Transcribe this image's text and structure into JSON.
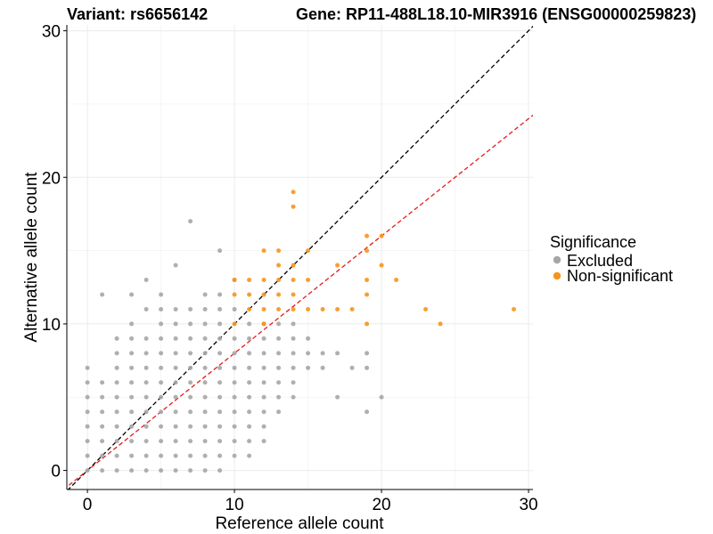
{
  "chart_data": {
    "type": "scatter",
    "title_left": "Variant: rs6656142",
    "title_right": "Gene: RP11-488L18.10-MIR3916 (ENSG00000259823)",
    "xlabel": "Reference allele count",
    "ylabel": "Alternative allele count",
    "xlim": [
      -1.4,
      30.3
    ],
    "ylim": [
      -1.3,
      30.4
    ],
    "xticks": [
      0,
      10,
      20,
      30
    ],
    "yticks": [
      0,
      10,
      20,
      30
    ],
    "grid": true,
    "legend": {
      "title": "Significance",
      "placement": "right",
      "entries": [
        {
          "label": "Excluded",
          "color": "#A6A6A6"
        },
        {
          "label": "Non-significant",
          "color": "#F7931E"
        }
      ]
    },
    "reference_lines": [
      {
        "name": "identity",
        "slope": 1.0,
        "intercept": 0,
        "color": "#000000",
        "style": "dashed"
      },
      {
        "name": "expected-ratio",
        "slope": 0.8,
        "intercept": 0,
        "color": "#E41A1C",
        "style": "dashed"
      }
    ],
    "series": [
      {
        "name": "Excluded",
        "color": "#A6A6A6",
        "points": [
          [
            0,
            0
          ],
          [
            0,
            1
          ],
          [
            0,
            2
          ],
          [
            0,
            3
          ],
          [
            0,
            4
          ],
          [
            0,
            5
          ],
          [
            0,
            6
          ],
          [
            0,
            7
          ],
          [
            1,
            0
          ],
          [
            1,
            1
          ],
          [
            1,
            2
          ],
          [
            1,
            3
          ],
          [
            1,
            4
          ],
          [
            1,
            5
          ],
          [
            1,
            6
          ],
          [
            1,
            12
          ],
          [
            2,
            0
          ],
          [
            2,
            1
          ],
          [
            2,
            2
          ],
          [
            2,
            3
          ],
          [
            2,
            4
          ],
          [
            2,
            5
          ],
          [
            2,
            6
          ],
          [
            2,
            7
          ],
          [
            2,
            8
          ],
          [
            2,
            9
          ],
          [
            3,
            0
          ],
          [
            3,
            1
          ],
          [
            3,
            2
          ],
          [
            3,
            3
          ],
          [
            3,
            4
          ],
          [
            3,
            5
          ],
          [
            3,
            6
          ],
          [
            3,
            7
          ],
          [
            3,
            8
          ],
          [
            3,
            9
          ],
          [
            3,
            10
          ],
          [
            3,
            12
          ],
          [
            4,
            0
          ],
          [
            4,
            1
          ],
          [
            4,
            2
          ],
          [
            4,
            3
          ],
          [
            4,
            4
          ],
          [
            4,
            5
          ],
          [
            4,
            6
          ],
          [
            4,
            7
          ],
          [
            4,
            8
          ],
          [
            4,
            9
          ],
          [
            4,
            11
          ],
          [
            4,
            13
          ],
          [
            5,
            0
          ],
          [
            5,
            1
          ],
          [
            5,
            2
          ],
          [
            5,
            3
          ],
          [
            5,
            4
          ],
          [
            5,
            5
          ],
          [
            5,
            6
          ],
          [
            5,
            7
          ],
          [
            5,
            8
          ],
          [
            5,
            9
          ],
          [
            5,
            10
          ],
          [
            5,
            11
          ],
          [
            5,
            12
          ],
          [
            6,
            0
          ],
          [
            6,
            1
          ],
          [
            6,
            2
          ],
          [
            6,
            3
          ],
          [
            6,
            4
          ],
          [
            6,
            5
          ],
          [
            6,
            6
          ],
          [
            6,
            7
          ],
          [
            6,
            8
          ],
          [
            6,
            9
          ],
          [
            6,
            10
          ],
          [
            6,
            11
          ],
          [
            6,
            14
          ],
          [
            7,
            0
          ],
          [
            7,
            1
          ],
          [
            7,
            2
          ],
          [
            7,
            3
          ],
          [
            7,
            4
          ],
          [
            7,
            5
          ],
          [
            7,
            6
          ],
          [
            7,
            7
          ],
          [
            7,
            8
          ],
          [
            7,
            9
          ],
          [
            7,
            10
          ],
          [
            7,
            11
          ],
          [
            7,
            17
          ],
          [
            8,
            0
          ],
          [
            8,
            1
          ],
          [
            8,
            2
          ],
          [
            8,
            3
          ],
          [
            8,
            4
          ],
          [
            8,
            5
          ],
          [
            8,
            6
          ],
          [
            8,
            7
          ],
          [
            8,
            8
          ],
          [
            8,
            9
          ],
          [
            8,
            10
          ],
          [
            8,
            11
          ],
          [
            8,
            12
          ],
          [
            9,
            0
          ],
          [
            9,
            1
          ],
          [
            9,
            2
          ],
          [
            9,
            3
          ],
          [
            9,
            4
          ],
          [
            9,
            5
          ],
          [
            9,
            6
          ],
          [
            9,
            7
          ],
          [
            9,
            8
          ],
          [
            9,
            9
          ],
          [
            9,
            10
          ],
          [
            9,
            11
          ],
          [
            9,
            12
          ],
          [
            9,
            15
          ],
          [
            10,
            1
          ],
          [
            10,
            2
          ],
          [
            10,
            3
          ],
          [
            10,
            4
          ],
          [
            10,
            5
          ],
          [
            10,
            6
          ],
          [
            10,
            7
          ],
          [
            10,
            8
          ],
          [
            10,
            9
          ],
          [
            10,
            11
          ],
          [
            10,
            13
          ],
          [
            11,
            1
          ],
          [
            11,
            2
          ],
          [
            11,
            3
          ],
          [
            11,
            4
          ],
          [
            11,
            5
          ],
          [
            11,
            6
          ],
          [
            11,
            7
          ],
          [
            11,
            8
          ],
          [
            11,
            9
          ],
          [
            11,
            10
          ],
          [
            12,
            2
          ],
          [
            12,
            3
          ],
          [
            12,
            4
          ],
          [
            12,
            5
          ],
          [
            12,
            6
          ],
          [
            12,
            7
          ],
          [
            12,
            8
          ],
          [
            12,
            9
          ],
          [
            12,
            10
          ],
          [
            13,
            4
          ],
          [
            13,
            5
          ],
          [
            13,
            6
          ],
          [
            13,
            7
          ],
          [
            13,
            8
          ],
          [
            13,
            9
          ],
          [
            13,
            10
          ],
          [
            14,
            5
          ],
          [
            14,
            6
          ],
          [
            14,
            7
          ],
          [
            14,
            8
          ],
          [
            14,
            9
          ],
          [
            14,
            10
          ],
          [
            15,
            7
          ],
          [
            15,
            8
          ],
          [
            15,
            9
          ],
          [
            16,
            7
          ],
          [
            16,
            8
          ],
          [
            17,
            5
          ],
          [
            17,
            8
          ],
          [
            18,
            7
          ],
          [
            19,
            4
          ],
          [
            19,
            7
          ],
          [
            19,
            8
          ],
          [
            20,
            5
          ]
        ]
      },
      {
        "name": "Non-significant",
        "color": "#F7931E",
        "points": [
          [
            10,
            10
          ],
          [
            10,
            12
          ],
          [
            10,
            13
          ],
          [
            11,
            11
          ],
          [
            11,
            12
          ],
          [
            11,
            13
          ],
          [
            12,
            10
          ],
          [
            12,
            11
          ],
          [
            12,
            12
          ],
          [
            12,
            13
          ],
          [
            12,
            15
          ],
          [
            13,
            11
          ],
          [
            13,
            12
          ],
          [
            13,
            13
          ],
          [
            13,
            14
          ],
          [
            13,
            15
          ],
          [
            14,
            11
          ],
          [
            14,
            12
          ],
          [
            14,
            13
          ],
          [
            14,
            14
          ],
          [
            14,
            18
          ],
          [
            14,
            19
          ],
          [
            15,
            11
          ],
          [
            15,
            13
          ],
          [
            15,
            15
          ],
          [
            16,
            11
          ],
          [
            17,
            11
          ],
          [
            17,
            14
          ],
          [
            18,
            11
          ],
          [
            19,
            10
          ],
          [
            19,
            12
          ],
          [
            19,
            13
          ],
          [
            19,
            15
          ],
          [
            19,
            16
          ],
          [
            20,
            14
          ],
          [
            20,
            16
          ],
          [
            21,
            13
          ],
          [
            23,
            11
          ],
          [
            24,
            10
          ],
          [
            29,
            11
          ]
        ]
      }
    ]
  }
}
